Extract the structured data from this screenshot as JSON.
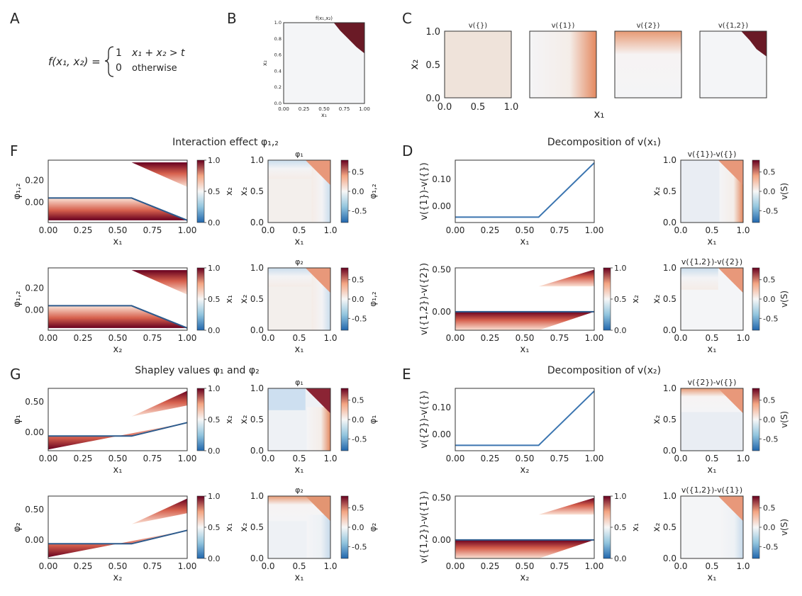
{
  "colors": {
    "red": "#67001f",
    "peach": "#f4a582",
    "blue": "#2166ac",
    "mid": "#f7f7f7",
    "line": "#2c5a8c"
  },
  "panel_letters": {
    "A": "A",
    "B": "B",
    "C": "C",
    "D": "D",
    "E": "E",
    "F": "F",
    "G": "G"
  },
  "formula": {
    "lhs": "f(x₁, x₂) = ",
    "case1_value": "1",
    "case1_cond": "x₁ + x₂ > t",
    "case2_value": "0",
    "case2_cond": "otherwise"
  },
  "section_titles": {
    "F": "Interaction effect φ₁,₂",
    "G": "Shapley values φ₁ and φ₂",
    "D": "Decomposition of v(x₁)",
    "E": "Decomposition of v(x₂)"
  },
  "chart_data": [
    {
      "id": "B",
      "type": "heatmap",
      "title": "f(x₁,x₂)",
      "xlabel": "x₁",
      "ylabel": "x₂",
      "xlim": [
        0,
        1
      ],
      "ylim": [
        0,
        1
      ],
      "xticks": [
        "0.00",
        "0.25",
        "0.50",
        "0.75",
        "1.00"
      ],
      "yticks": [
        "0.0",
        "0.2",
        "0.4",
        "0.6",
        "0.8",
        "1.0"
      ],
      "threshold": 1.6,
      "values": [
        0,
        1
      ]
    },
    {
      "id": "C1",
      "type": "heatmap",
      "title": "v({})",
      "xlabel": "x₁",
      "ylabel": "x₂",
      "xticks": [
        "0.0",
        "0.5",
        "1.0"
      ],
      "yticks": [
        "0.0",
        "0.5",
        "1.0"
      ],
      "constant": 0.04
    },
    {
      "id": "C2",
      "type": "heatmap",
      "title": "v({1})"
    },
    {
      "id": "C3",
      "type": "heatmap",
      "title": "v({2})"
    },
    {
      "id": "C4",
      "type": "heatmap",
      "title": "v({1,2})"
    },
    {
      "id": "F1",
      "type": "area",
      "ylabel": "φ₁,₂",
      "xlabel": "x₁",
      "ylim": [
        -0.18,
        0.38
      ],
      "yticks": [
        "0.00",
        "0.20"
      ],
      "xticks": [
        "0.00",
        "0.25",
        "0.50",
        "0.75",
        "1.00"
      ],
      "line": [
        {
          "x": 0,
          "y": 0.04
        },
        {
          "x": 0.6,
          "y": 0.04
        },
        {
          "x": 1.0,
          "y": -0.16
        }
      ],
      "colorbar": {
        "label": "x₂",
        "ticks": [
          "0.0",
          "0.5",
          "1.0"
        ],
        "range": [
          0,
          1
        ]
      }
    },
    {
      "id": "F2",
      "type": "heatmap",
      "title": "φ₁",
      "xlabel": "x₁",
      "ylabel": "x₂",
      "xticks": [
        "0.0",
        "0.5",
        "1.0"
      ],
      "yticks": [
        "0.0",
        "0.5",
        "1.0"
      ],
      "colorbar": {
        "label": "φ₁,₂",
        "ticks": [
          "0.5",
          "0.0",
          "-0.5"
        ],
        "range": [
          -0.8,
          0.8
        ]
      }
    },
    {
      "id": "F3",
      "type": "area",
      "ylabel": "φ₁,₂",
      "xlabel": "x₂",
      "ylim": [
        -0.18,
        0.38
      ],
      "yticks": [
        "0.00",
        "0.20"
      ],
      "xticks": [
        "0.00",
        "0.25",
        "0.50",
        "0.75",
        "1.00"
      ],
      "line": [
        {
          "x": 0,
          "y": 0.04
        },
        {
          "x": 0.6,
          "y": 0.04
        },
        {
          "x": 1.0,
          "y": -0.16
        }
      ],
      "colorbar": {
        "label": "x₁",
        "ticks": [
          "0.0",
          "0.5",
          "1.0"
        ],
        "range": [
          0,
          1
        ]
      }
    },
    {
      "id": "F4",
      "type": "heatmap",
      "title": "φ₂",
      "xlabel": "x₁",
      "ylabel": "x₂",
      "xticks": [
        "0.0",
        "0.5",
        "1.0"
      ],
      "yticks": [
        "0.0",
        "0.5",
        "1.0"
      ],
      "colorbar": {
        "label": "φ₁,₂",
        "ticks": [
          "0.5",
          "0.0",
          "-0.5"
        ],
        "range": [
          -0.8,
          0.8
        ]
      }
    },
    {
      "id": "G1",
      "type": "area",
      "ylabel": "φ₁",
      "xlabel": "x₁",
      "ylim": [
        -0.3,
        0.72
      ],
      "yticks": [
        "0.00",
        "0.50"
      ],
      "xticks": [
        "0.00",
        "0.25",
        "0.50",
        "0.75",
        "1.00"
      ],
      "line": [
        {
          "x": 0,
          "y": -0.06
        },
        {
          "x": 0.6,
          "y": -0.06
        },
        {
          "x": 1.0,
          "y": 0.16
        }
      ],
      "colorbar": {
        "label": "x₂",
        "ticks": [
          "0.0",
          "0.5",
          "1.0"
        ],
        "range": [
          0,
          1
        ]
      }
    },
    {
      "id": "G2",
      "type": "heatmap",
      "title": "φ₁",
      "xlabel": "x₁",
      "ylabel": "x₂",
      "xticks": [
        "0.0",
        "0.5",
        "1.0"
      ],
      "yticks": [
        "0.0",
        "0.5",
        "1.0"
      ],
      "colorbar": {
        "label": "φ₁",
        "ticks": [
          "0.5",
          "0.0",
          "-0.5"
        ],
        "range": [
          -0.8,
          0.8
        ]
      }
    },
    {
      "id": "G3",
      "type": "area",
      "ylabel": "φ₂",
      "xlabel": "x₂",
      "ylim": [
        -0.3,
        0.72
      ],
      "yticks": [
        "0.00",
        "0.50"
      ],
      "xticks": [
        "0.00",
        "0.25",
        "0.50",
        "0.75",
        "1.00"
      ],
      "line": [
        {
          "x": 0,
          "y": -0.06
        },
        {
          "x": 0.6,
          "y": -0.06
        },
        {
          "x": 1.0,
          "y": 0.16
        }
      ],
      "colorbar": {
        "label": "x₁",
        "ticks": [
          "0.0",
          "0.5",
          "1.0"
        ],
        "range": [
          0,
          1
        ]
      }
    },
    {
      "id": "G4",
      "type": "heatmap",
      "title": "φ₂",
      "xlabel": "x₁",
      "ylabel": "x₂",
      "xticks": [
        "0.0",
        "0.5",
        "1.0"
      ],
      "yticks": [
        "0.0",
        "0.5",
        "1.0"
      ],
      "colorbar": {
        "label": "φ₂",
        "ticks": [
          "0.5",
          "0.0",
          "-0.5"
        ],
        "range": [
          -0.8,
          0.8
        ]
      }
    },
    {
      "id": "D1",
      "type": "line",
      "ylabel": "v({1})-v({})",
      "xlabel": "x₁",
      "ylim": [
        -0.06,
        0.17
      ],
      "yticks": [
        "0.10",
        "0.00"
      ],
      "xticks": [
        "0.00",
        "0.25",
        "0.50",
        "0.75",
        "1.00"
      ],
      "line": [
        {
          "x": 0,
          "y": -0.04
        },
        {
          "x": 0.6,
          "y": -0.04
        },
        {
          "x": 1.0,
          "y": 0.16
        }
      ]
    },
    {
      "id": "D2",
      "type": "heatmap",
      "title": "v({1})-v({})",
      "xlabel": "x₁",
      "ylabel": "x₂",
      "xticks": [
        "0.0",
        "0.5",
        "1.0"
      ],
      "yticks": [
        "0.0",
        "0.5",
        "1.0"
      ],
      "colorbar": {
        "label": "v(S)",
        "ticks": [
          "0.5",
          "0.0",
          "-0.5"
        ],
        "range": [
          -0.8,
          0.8
        ]
      }
    },
    {
      "id": "D3",
      "type": "area",
      "ylabel": "v({1,2})-v({2})",
      "xlabel": "x₁",
      "ylim": [
        -0.22,
        0.52
      ],
      "yticks": [
        "0.50",
        "0.00"
      ],
      "xticks": [
        "0.00",
        "0.25",
        "0.50",
        "0.75",
        "1.00"
      ],
      "line": [
        {
          "x": 0,
          "y": 0.0
        },
        {
          "x": 1.0,
          "y": 0.0
        }
      ],
      "colorbar": {
        "label": "x₂",
        "ticks": [
          "0.0",
          "0.5",
          "1.0"
        ],
        "range": [
          0,
          1
        ]
      }
    },
    {
      "id": "D4",
      "type": "heatmap",
      "title": "v({1,2})-v({2})",
      "xlabel": "x₁",
      "ylabel": "x₂",
      "xticks": [
        "0.0",
        "0.5",
        "1.0"
      ],
      "yticks": [
        "0.0",
        "0.5",
        "1.0"
      ],
      "colorbar": {
        "label": "v(S)",
        "ticks": [
          "0.5",
          "0.0",
          "-0.5"
        ],
        "range": [
          -0.8,
          0.8
        ]
      }
    },
    {
      "id": "E1",
      "type": "line",
      "ylabel": "v({2})-v({})",
      "xlabel": "x₂",
      "ylim": [
        -0.06,
        0.17
      ],
      "yticks": [
        "0.10",
        "0.00"
      ],
      "xticks": [
        "0.00",
        "0.25",
        "0.50",
        "0.75",
        "1.00"
      ],
      "line": [
        {
          "x": 0,
          "y": -0.04
        },
        {
          "x": 0.6,
          "y": -0.04
        },
        {
          "x": 1.0,
          "y": 0.16
        }
      ]
    },
    {
      "id": "E2",
      "type": "heatmap",
      "title": "v({2})-v({})",
      "xlabel": "x₁",
      "ylabel": "x₂",
      "xticks": [
        "0.0",
        "0.5",
        "1.0"
      ],
      "yticks": [
        "0.0",
        "0.5",
        "1.0"
      ],
      "colorbar": {
        "label": "v(S)",
        "ticks": [
          "0.5",
          "0.0",
          "-0.5"
        ],
        "range": [
          -0.8,
          0.8
        ]
      }
    },
    {
      "id": "E3",
      "type": "area",
      "ylabel": "v({1,2})-v({1})",
      "xlabel": "x₂",
      "ylim": [
        -0.22,
        0.52
      ],
      "yticks": [
        "0.50",
        "0.00"
      ],
      "xticks": [
        "0.00",
        "0.25",
        "0.50",
        "0.75",
        "1.00"
      ],
      "line": [
        {
          "x": 0,
          "y": 0.0
        },
        {
          "x": 1.0,
          "y": 0.0
        }
      ],
      "colorbar": {
        "label": "x₁",
        "ticks": [
          "0.0",
          "0.5",
          "1.0"
        ],
        "range": [
          0,
          1
        ]
      }
    },
    {
      "id": "E4",
      "type": "heatmap",
      "title": "v({1,2})-v({1})",
      "xlabel": "x₁",
      "ylabel": "x₂",
      "xticks": [
        "0.0",
        "0.5",
        "1.0"
      ],
      "yticks": [
        "0.0",
        "0.5",
        "1.0"
      ],
      "colorbar": {
        "label": "v(S)",
        "ticks": [
          "0.5",
          "0.0",
          "-0.5"
        ],
        "range": [
          -0.8,
          0.8
        ]
      }
    }
  ]
}
